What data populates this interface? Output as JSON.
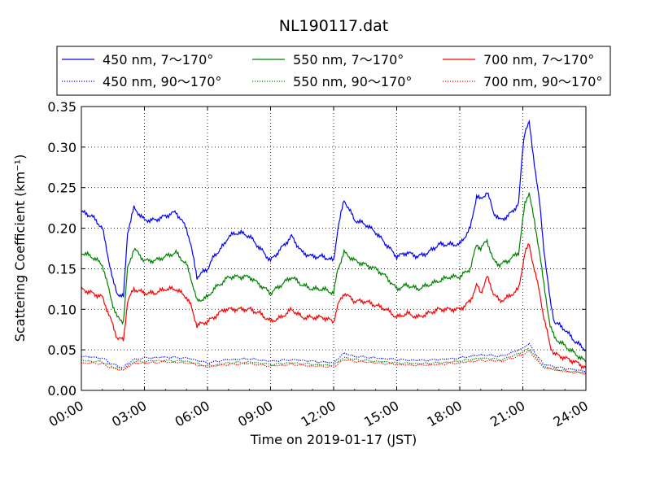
{
  "chart_data": {
    "type": "line",
    "title": "NL190117.dat",
    "xlabel": "Time on 2019-01-17 (JST)",
    "ylabel": "Scattering Coefficient (km⁻¹)",
    "xlim": [
      0,
      24
    ],
    "ylim": [
      0,
      0.35
    ],
    "xticks": [
      0,
      3,
      6,
      9,
      12,
      15,
      18,
      21,
      24
    ],
    "xtick_labels": [
      "00:00",
      "03:00",
      "06:00",
      "09:00",
      "12:00",
      "15:00",
      "18:00",
      "21:00",
      "24:00"
    ],
    "yticks": [
      0,
      0.05,
      0.1,
      0.15,
      0.2,
      0.25,
      0.3,
      0.35
    ],
    "ytick_labels": [
      "0.00",
      "0.05",
      "0.10",
      "0.15",
      "0.20",
      "0.25",
      "0.30",
      "0.35"
    ],
    "grid": true,
    "legend_placement": "top, above plot",
    "series": [
      {
        "name": "450 nm, 7～170°",
        "color": "#0000ff",
        "style": "solid",
        "x": [
          0,
          0.5,
          1,
          1.5,
          1.7,
          2,
          2.2,
          2.5,
          3,
          3.5,
          4,
          4.5,
          5,
          5.2,
          5.5,
          6,
          6.3,
          6.8,
          7,
          7.5,
          8,
          8.5,
          9,
          9.5,
          10,
          10.5,
          11,
          11.5,
          12,
          12.2,
          12.5,
          13,
          13.5,
          14,
          14.5,
          15,
          15.5,
          16,
          16.5,
          17,
          17.5,
          18,
          18.5,
          18.8,
          19,
          19.3,
          19.6,
          19.9,
          20.3,
          20.8,
          21,
          21.1,
          21.3,
          21.5,
          21.8,
          22,
          22.3,
          22.5,
          23,
          23.5,
          24
        ],
        "y": [
          0.22,
          0.215,
          0.2,
          0.135,
          0.12,
          0.115,
          0.195,
          0.225,
          0.21,
          0.21,
          0.215,
          0.22,
          0.2,
          0.18,
          0.14,
          0.15,
          0.165,
          0.18,
          0.19,
          0.195,
          0.19,
          0.175,
          0.16,
          0.175,
          0.19,
          0.17,
          0.165,
          0.165,
          0.16,
          0.2,
          0.235,
          0.21,
          0.205,
          0.195,
          0.18,
          0.165,
          0.17,
          0.165,
          0.17,
          0.18,
          0.18,
          0.18,
          0.2,
          0.24,
          0.235,
          0.245,
          0.22,
          0.21,
          0.215,
          0.23,
          0.3,
          0.32,
          0.33,
          0.29,
          0.23,
          0.175,
          0.11,
          0.085,
          0.075,
          0.06,
          0.05
        ]
      },
      {
        "name": "550 nm, 7～170°",
        "color": "#008000",
        "style": "solid",
        "x": [
          0,
          0.5,
          1,
          1.5,
          1.7,
          2,
          2.2,
          2.5,
          3,
          3.5,
          4,
          4.5,
          5,
          5.2,
          5.5,
          6,
          6.3,
          6.8,
          7,
          7.5,
          8,
          8.5,
          9,
          9.5,
          10,
          10.5,
          11,
          11.5,
          12,
          12.2,
          12.5,
          13,
          13.5,
          14,
          14.5,
          15,
          15.5,
          16,
          16.5,
          17,
          17.5,
          18,
          18.5,
          18.8,
          19,
          19.3,
          19.6,
          19.9,
          20.3,
          20.8,
          21,
          21.1,
          21.3,
          21.5,
          21.8,
          22,
          22.3,
          22.5,
          23,
          23.5,
          24
        ],
        "y": [
          0.17,
          0.165,
          0.155,
          0.105,
          0.09,
          0.085,
          0.15,
          0.175,
          0.16,
          0.16,
          0.165,
          0.17,
          0.155,
          0.14,
          0.11,
          0.115,
          0.125,
          0.135,
          0.14,
          0.14,
          0.14,
          0.13,
          0.12,
          0.13,
          0.14,
          0.13,
          0.125,
          0.125,
          0.12,
          0.15,
          0.17,
          0.16,
          0.155,
          0.15,
          0.14,
          0.125,
          0.13,
          0.125,
          0.13,
          0.135,
          0.14,
          0.14,
          0.15,
          0.18,
          0.175,
          0.185,
          0.16,
          0.155,
          0.16,
          0.17,
          0.21,
          0.23,
          0.245,
          0.215,
          0.17,
          0.13,
          0.08,
          0.065,
          0.055,
          0.045,
          0.035
        ]
      },
      {
        "name": "700 nm, 7～170°",
        "color": "#ff0000",
        "style": "solid",
        "x": [
          0,
          0.5,
          1,
          1.5,
          1.7,
          2,
          2.2,
          2.5,
          3,
          3.5,
          4,
          4.5,
          5,
          5.2,
          5.5,
          6,
          6.3,
          6.8,
          7,
          7.5,
          8,
          8.5,
          9,
          9.5,
          10,
          10.5,
          11,
          11.5,
          12,
          12.2,
          12.5,
          13,
          13.5,
          14,
          14.5,
          15,
          15.5,
          16,
          16.5,
          17,
          17.5,
          18,
          18.5,
          18.8,
          19,
          19.3,
          19.6,
          19.9,
          20.3,
          20.8,
          21,
          21.1,
          21.3,
          21.5,
          21.8,
          22,
          22.3,
          22.5,
          23,
          23.5,
          24
        ],
        "y": [
          0.125,
          0.12,
          0.115,
          0.08,
          0.065,
          0.062,
          0.11,
          0.125,
          0.12,
          0.12,
          0.125,
          0.125,
          0.115,
          0.105,
          0.08,
          0.085,
          0.09,
          0.1,
          0.1,
          0.1,
          0.1,
          0.095,
          0.085,
          0.09,
          0.1,
          0.09,
          0.09,
          0.09,
          0.085,
          0.105,
          0.12,
          0.11,
          0.11,
          0.105,
          0.1,
          0.09,
          0.095,
          0.09,
          0.095,
          0.1,
          0.1,
          0.1,
          0.11,
          0.13,
          0.12,
          0.14,
          0.12,
          0.11,
          0.115,
          0.125,
          0.155,
          0.17,
          0.18,
          0.155,
          0.12,
          0.09,
          0.055,
          0.045,
          0.04,
          0.035,
          0.028
        ]
      },
      {
        "name": "450 nm, 90～170°",
        "color": "#0000ff",
        "style": "dotted",
        "x": [
          0,
          1,
          1.5,
          2,
          2.2,
          2.5,
          3,
          4,
          5,
          6,
          7,
          8,
          9,
          10,
          11,
          12,
          12.5,
          13,
          14,
          15,
          16,
          17,
          18,
          19,
          20,
          21,
          21.3,
          21.6,
          22,
          23,
          24
        ],
        "y": [
          0.042,
          0.04,
          0.032,
          0.028,
          0.033,
          0.038,
          0.04,
          0.041,
          0.04,
          0.034,
          0.038,
          0.039,
          0.036,
          0.038,
          0.036,
          0.034,
          0.046,
          0.042,
          0.04,
          0.038,
          0.037,
          0.038,
          0.04,
          0.044,
          0.042,
          0.052,
          0.058,
          0.045,
          0.032,
          0.027,
          0.024
        ]
      },
      {
        "name": "550 nm, 90～170°",
        "color": "#008000",
        "style": "dotted",
        "x": [
          0,
          1,
          1.5,
          2,
          2.2,
          2.5,
          3,
          4,
          5,
          6,
          7,
          8,
          9,
          10,
          11,
          12,
          12.5,
          13,
          14,
          15,
          16,
          17,
          18,
          19,
          20,
          21,
          21.3,
          21.6,
          22,
          23,
          24
        ],
        "y": [
          0.037,
          0.035,
          0.029,
          0.026,
          0.03,
          0.035,
          0.036,
          0.037,
          0.036,
          0.03,
          0.034,
          0.035,
          0.032,
          0.034,
          0.032,
          0.031,
          0.041,
          0.038,
          0.036,
          0.034,
          0.033,
          0.034,
          0.036,
          0.04,
          0.038,
          0.047,
          0.052,
          0.041,
          0.029,
          0.024,
          0.022
        ]
      },
      {
        "name": "700 nm, 90～170°",
        "color": "#ff0000",
        "style": "dotted",
        "x": [
          0,
          1,
          1.5,
          2,
          2.2,
          2.5,
          3,
          4,
          5,
          6,
          7,
          8,
          9,
          10,
          11,
          12,
          12.5,
          13,
          14,
          15,
          16,
          17,
          18,
          19,
          20,
          21,
          21.3,
          21.6,
          22,
          23,
          24
        ],
        "y": [
          0.034,
          0.033,
          0.027,
          0.025,
          0.029,
          0.033,
          0.034,
          0.035,
          0.034,
          0.029,
          0.032,
          0.033,
          0.03,
          0.032,
          0.03,
          0.029,
          0.038,
          0.036,
          0.034,
          0.032,
          0.031,
          0.032,
          0.034,
          0.037,
          0.036,
          0.044,
          0.049,
          0.039,
          0.028,
          0.023,
          0.021
        ]
      }
    ]
  }
}
